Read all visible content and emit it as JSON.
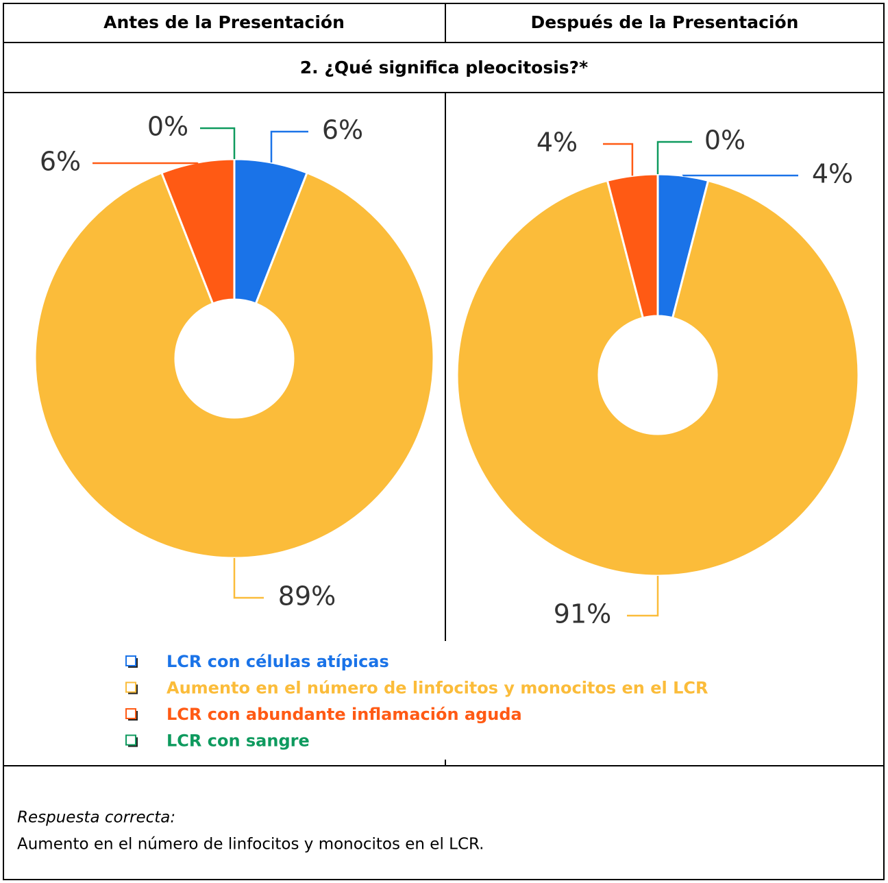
{
  "header": [
    "Antes de la Presentación",
    "Después de la Presentación"
  ],
  "question": "2. ¿Qué significa pleocitosis?*",
  "legend": [
    {
      "label": "LCR con células atípicas",
      "color": "#1a73e8"
    },
    {
      "label": "Aumento en el número de linfocitos y monocitos en el LCR",
      "color": "#fbbc3a"
    },
    {
      "label": "LCR con abundante inflamación aguda",
      "color": "#ff5a14"
    },
    {
      "label": "LCR con sangre",
      "color": "#0e9a5e"
    }
  ],
  "chart_data": [
    {
      "type": "pie",
      "donut": true,
      "values": [
        6,
        89,
        6,
        0
      ],
      "value_labels": [
        "6%",
        "89%",
        "6%",
        "0%"
      ]
    },
    {
      "type": "pie",
      "donut": true,
      "values": [
        4,
        91,
        4,
        0
      ],
      "value_labels": [
        "4%",
        "91%",
        "4%",
        "0%"
      ]
    }
  ],
  "answer": {
    "label": "Respuesta correcta:",
    "text": "Aumento en el número de linfocitos y monocitos en el LCR."
  }
}
